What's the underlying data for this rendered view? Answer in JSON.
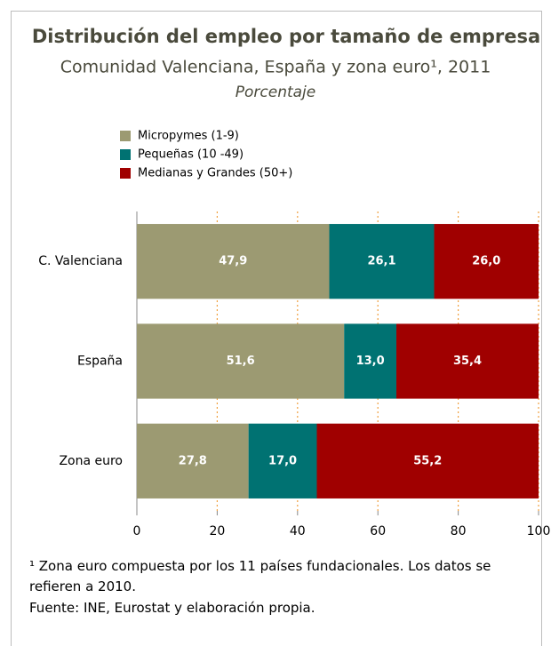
{
  "chart_data": {
    "type": "stacked_barh",
    "title": "Distribución del empleo por tamaño de empresa",
    "subtitle": "Comunidad Valenciana, España y zona euro¹, 2011",
    "unit_label": "Porcentaje",
    "categories": [
      "C. Valenciana",
      "España",
      "Zona euro"
    ],
    "series": [
      {
        "name": "Micropymes (1-9)",
        "color": "#9c9a72",
        "values": [
          47.9,
          51.6,
          27.8
        ],
        "value_labels": [
          "47,9",
          "51,6",
          "27,8"
        ]
      },
      {
        "name": "Pequeñas (10 -49)",
        "color": "#007272",
        "values": [
          26.1,
          13.0,
          17.0
        ],
        "value_labels": [
          "26,1",
          "13,0",
          "17,0"
        ]
      },
      {
        "name": "Medianas y Grandes (50+)",
        "color": "#a00000",
        "values": [
          26.0,
          35.4,
          55.2
        ],
        "value_labels": [
          "26,0",
          "35,4",
          "55,2"
        ]
      }
    ],
    "xlim": [
      0,
      100
    ],
    "xticks": [
      0,
      20,
      40,
      60,
      80,
      100
    ],
    "grid": true,
    "footnotes": [
      "¹ Zona euro compuesta por los 11 países fundacionales. Los datos se refieren a 2010.",
      "Fuente: INE, Eurostat y elaboración propia."
    ]
  }
}
